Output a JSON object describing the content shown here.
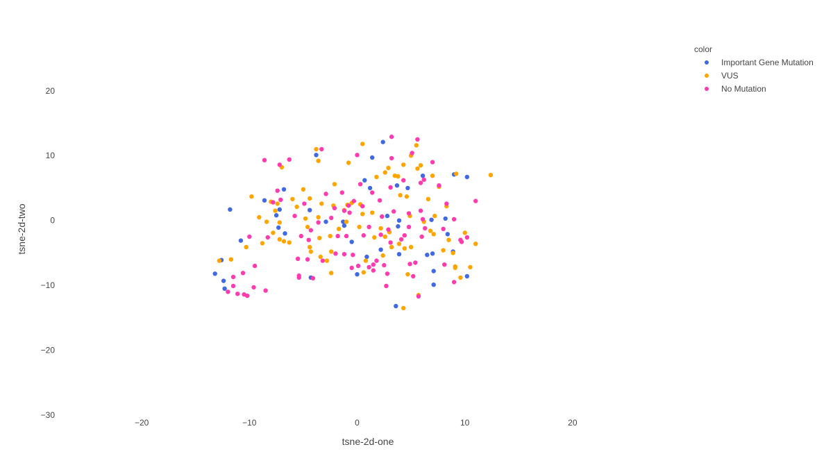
{
  "chart_data": {
    "type": "scatter",
    "title": "",
    "xlabel": "tsne-2d-one",
    "ylabel": "tsne-2d-two",
    "xlim": [
      -28,
      30
    ],
    "ylim": [
      -30,
      28
    ],
    "xticks": [
      -20,
      -10,
      0,
      10,
      20
    ],
    "yticks": [
      -30,
      -20,
      -10,
      0,
      10,
      20
    ],
    "grid": false,
    "legend_title": "color",
    "legend_position": "top-right",
    "series": [
      {
        "name": "Important Gene Mutation",
        "color": "#4169E1",
        "points": [
          [
            -13.2,
            -8.2
          ],
          [
            -12.6,
            -6.1
          ],
          [
            -12.4,
            -9.3
          ],
          [
            -12.3,
            -10.5
          ],
          [
            -11.8,
            1.7
          ],
          [
            -10.8,
            -3.1
          ],
          [
            -8.6,
            3.1
          ],
          [
            -7.5,
            0.8
          ],
          [
            -7.2,
            1.7
          ],
          [
            -7.3,
            -1.1
          ],
          [
            -6.8,
            4.8
          ],
          [
            -6.7,
            -2.0
          ],
          [
            -4.4,
            1.6
          ],
          [
            -4.3,
            -8.8
          ],
          [
            -3.8,
            10.1
          ],
          [
            -2.9,
            -0.2
          ],
          [
            -1.3,
            -0.2
          ],
          [
            -1.2,
            -0.8
          ],
          [
            -0.5,
            -3.3
          ],
          [
            0.0,
            -8.3
          ],
          [
            0.7,
            6.2
          ],
          [
            0.9,
            -5.6
          ],
          [
            1.2,
            5.0
          ],
          [
            1.4,
            9.7
          ],
          [
            2.2,
            -4.5
          ],
          [
            2.4,
            12.1
          ],
          [
            2.8,
            0.7
          ],
          [
            3.6,
            -13.2
          ],
          [
            3.7,
            5.4
          ],
          [
            3.8,
            -0.9
          ],
          [
            3.9,
            0.0
          ],
          [
            3.9,
            -5.2
          ],
          [
            4.7,
            5.0
          ],
          [
            6.1,
            6.9
          ],
          [
            6.5,
            -5.3
          ],
          [
            6.9,
            0.1
          ],
          [
            7.0,
            -5.1
          ],
          [
            7.1,
            -7.8
          ],
          [
            7.1,
            -9.9
          ],
          [
            8.2,
            0.3
          ],
          [
            8.4,
            -2.1
          ],
          [
            8.9,
            -4.8
          ],
          [
            9.0,
            7.1
          ],
          [
            10.2,
            6.7
          ],
          [
            10.2,
            -8.6
          ]
        ]
      },
      {
        "name": "VUS",
        "color": "#FFA500",
        "points": [
          [
            -12.8,
            -6.2
          ],
          [
            -11.7,
            -6.0
          ],
          [
            -10.3,
            -4.1
          ],
          [
            -9.8,
            3.7
          ],
          [
            -9.1,
            0.5
          ],
          [
            -8.8,
            -3.5
          ],
          [
            -8.4,
            -0.2
          ],
          [
            -8.0,
            2.9
          ],
          [
            -7.8,
            -1.9
          ],
          [
            -7.6,
            1.5
          ],
          [
            -7.4,
            2.6
          ],
          [
            -7.2,
            -0.3
          ],
          [
            -7.2,
            -2.9
          ],
          [
            -7.0,
            8.2
          ],
          [
            -6.8,
            -3.2
          ],
          [
            -6.3,
            -3.4
          ],
          [
            -6.0,
            3.3
          ],
          [
            -5.6,
            2.1
          ],
          [
            -5.0,
            4.8
          ],
          [
            -4.8,
            0.3
          ],
          [
            -4.6,
            -1.0
          ],
          [
            -4.4,
            3.4
          ],
          [
            -4.4,
            -4.1
          ],
          [
            -4.3,
            -4.8
          ],
          [
            -3.8,
            11.0
          ],
          [
            -3.6,
            9.2
          ],
          [
            -3.6,
            0.5
          ],
          [
            -3.5,
            -2.7
          ],
          [
            -3.4,
            -5.6
          ],
          [
            -3.3,
            2.6
          ],
          [
            -2.8,
            -6.2
          ],
          [
            -2.5,
            -2.4
          ],
          [
            -2.4,
            -4.8
          ],
          [
            -2.4,
            -8.1
          ],
          [
            -2.2,
            2.3
          ],
          [
            -2.1,
            5.6
          ],
          [
            -1.7,
            -1.3
          ],
          [
            -1.2,
            1.6
          ],
          [
            -1.0,
            -0.2
          ],
          [
            -0.9,
            2.4
          ],
          [
            -0.8,
            8.9
          ],
          [
            -0.5,
            2.7
          ],
          [
            0.2,
            -1.0
          ],
          [
            0.3,
            2.5
          ],
          [
            0.5,
            11.8
          ],
          [
            0.5,
            1.0
          ],
          [
            0.6,
            -8.0
          ],
          [
            0.8,
            -6.2
          ],
          [
            1.4,
            1.2
          ],
          [
            1.6,
            -2.6
          ],
          [
            1.8,
            6.7
          ],
          [
            2.2,
            -1.2
          ],
          [
            2.4,
            -5.4
          ],
          [
            2.6,
            7.4
          ],
          [
            2.6,
            -2.5
          ],
          [
            2.9,
            8.1
          ],
          [
            3.0,
            -1.8
          ],
          [
            3.2,
            -4.1
          ],
          [
            3.5,
            6.9
          ],
          [
            3.8,
            6.8
          ],
          [
            3.9,
            -3.6
          ],
          [
            4.0,
            3.9
          ],
          [
            4.3,
            8.6
          ],
          [
            4.3,
            -13.5
          ],
          [
            4.4,
            -4.3
          ],
          [
            4.6,
            3.7
          ],
          [
            4.7,
            -8.3
          ],
          [
            4.9,
            0.7
          ],
          [
            5.0,
            10.0
          ],
          [
            5.0,
            -4.1
          ],
          [
            5.5,
            11.6
          ],
          [
            5.6,
            8.0
          ],
          [
            5.7,
            -11.5
          ],
          [
            5.9,
            8.5
          ],
          [
            6.2,
            -0.2
          ],
          [
            6.6,
            3.3
          ],
          [
            6.8,
            -1.6
          ],
          [
            7.0,
            6.9
          ],
          [
            7.1,
            -2.1
          ],
          [
            7.2,
            0.7
          ],
          [
            7.6,
            5.2
          ],
          [
            8.0,
            -4.6
          ],
          [
            8.3,
            2.2
          ],
          [
            8.5,
            -3.0
          ],
          [
            8.9,
            -5.0
          ],
          [
            9.1,
            -7.1
          ],
          [
            9.1,
            -7.3
          ],
          [
            9.2,
            7.2
          ],
          [
            9.6,
            -8.8
          ],
          [
            10.0,
            -1.9
          ],
          [
            10.5,
            -7.2
          ],
          [
            11.0,
            -3.6
          ],
          [
            12.4,
            7.0
          ]
        ]
      },
      {
        "name": "No Mutation",
        "color": "#FF3BAF",
        "points": [
          [
            -12.0,
            -11.0
          ],
          [
            -11.5,
            -8.7
          ],
          [
            -11.5,
            -10.1
          ],
          [
            -11.1,
            -11.3
          ],
          [
            -10.6,
            -8.1
          ],
          [
            -10.5,
            -11.4
          ],
          [
            -10.2,
            -11.6
          ],
          [
            -10.0,
            -2.5
          ],
          [
            -9.6,
            -10.3
          ],
          [
            -9.5,
            -7.0
          ],
          [
            -8.6,
            9.3
          ],
          [
            -8.5,
            -10.8
          ],
          [
            -8.3,
            -2.6
          ],
          [
            -7.8,
            2.8
          ],
          [
            -7.4,
            4.6
          ],
          [
            -7.2,
            8.6
          ],
          [
            -7.1,
            3.2
          ],
          [
            -6.3,
            9.4
          ],
          [
            -5.8,
            0.7
          ],
          [
            -5.5,
            -5.9
          ],
          [
            -5.4,
            -8.5
          ],
          [
            -5.4,
            -8.8
          ],
          [
            -5.2,
            -2.4
          ],
          [
            -4.9,
            2.6
          ],
          [
            -4.6,
            -6.0
          ],
          [
            -4.5,
            -3.0
          ],
          [
            -4.3,
            -1.5
          ],
          [
            -4.1,
            -8.9
          ],
          [
            -3.6,
            -0.3
          ],
          [
            -3.3,
            11.0
          ],
          [
            -3.2,
            -6.2
          ],
          [
            -2.9,
            4.1
          ],
          [
            -2.4,
            0.4
          ],
          [
            -2.1,
            1.9
          ],
          [
            -2.0,
            -5.1
          ],
          [
            -1.8,
            -2.4
          ],
          [
            -1.4,
            4.3
          ],
          [
            -1.2,
            1.5
          ],
          [
            -1.2,
            -5.2
          ],
          [
            -1.0,
            -2.4
          ],
          [
            -0.8,
            2.3
          ],
          [
            -0.7,
            1.2
          ],
          [
            -0.5,
            -7.3
          ],
          [
            -0.4,
            -5.3
          ],
          [
            -0.3,
            3.0
          ],
          [
            0.0,
            10.1
          ],
          [
            0.1,
            -7.0
          ],
          [
            0.3,
            5.6
          ],
          [
            0.5,
            2.2
          ],
          [
            0.6,
            -2.3
          ],
          [
            1.1,
            -1.0
          ],
          [
            1.1,
            -7.2
          ],
          [
            1.4,
            4.3
          ],
          [
            1.5,
            -6.8
          ],
          [
            1.5,
            -7.7
          ],
          [
            1.8,
            -6.2
          ],
          [
            2.1,
            3.1
          ],
          [
            2.2,
            -2.2
          ],
          [
            2.3,
            0.6
          ],
          [
            2.5,
            -6.9
          ],
          [
            2.7,
            -10.1
          ],
          [
            2.8,
            -8.2
          ],
          [
            2.9,
            -1.4
          ],
          [
            3.1,
            5.1
          ],
          [
            3.1,
            -3.4
          ],
          [
            3.2,
            12.9
          ],
          [
            3.2,
            9.6
          ],
          [
            3.4,
            1.4
          ],
          [
            4.1,
            -2.9
          ],
          [
            4.3,
            6.2
          ],
          [
            4.4,
            -2.3
          ],
          [
            4.8,
            1.1
          ],
          [
            4.8,
            -1.0
          ],
          [
            4.9,
            -6.7
          ],
          [
            5.1,
            10.4
          ],
          [
            5.2,
            -8.6
          ],
          [
            5.4,
            -6.5
          ],
          [
            5.6,
            12.5
          ],
          [
            5.7,
            -11.7
          ],
          [
            5.9,
            5.8
          ],
          [
            5.9,
            1.5
          ],
          [
            6.0,
            -2.5
          ],
          [
            6.1,
            0.2
          ],
          [
            6.2,
            6.3
          ],
          [
            6.3,
            -1.2
          ],
          [
            7.0,
            9.0
          ],
          [
            7.6,
            5.4
          ],
          [
            8.0,
            -1.3
          ],
          [
            8.1,
            -6.8
          ],
          [
            8.3,
            2.6
          ],
          [
            9.0,
            0.2
          ],
          [
            9.0,
            -9.5
          ],
          [
            9.6,
            -3.0
          ],
          [
            9.7,
            -3.3
          ],
          [
            10.2,
            -2.6
          ],
          [
            11.0,
            3.0
          ]
        ]
      }
    ]
  }
}
